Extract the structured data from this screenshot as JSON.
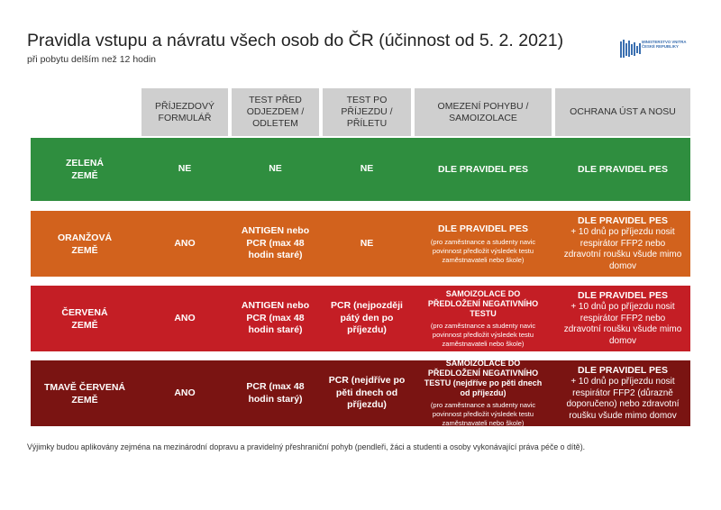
{
  "header": {
    "title": "Pravidla vstupu a návratu všech osob do ČR (účinnost od 5. 2. 2021)",
    "subtitle": "při pobytu delším než 12 hodin",
    "logo_text_line1": "MINISTERSTVO VNITRA",
    "logo_text_line2": "ČESKÉ REPUBLIKY"
  },
  "columns": [
    "PŘÍJEZDOVÝ FORMULÁŘ",
    "TEST PŘED ODJEZDEM / ODLETEM",
    "TEST PO PŘÍJEZDU / PŘÍLETU",
    "OMEZENÍ POHYBU / SAMOIZOLACE",
    "OCHRANA ÚST A NOSU"
  ],
  "rows": [
    {
      "label": "ZELENÁ ZEMĚ",
      "color": "#2f8e3f",
      "formular": "NE",
      "test_pred": "NE",
      "test_po": "NE",
      "omezeni_main": "DLE PRAVIDEL PES",
      "omezeni_note": "",
      "ochrana_main": "DLE PRAVIDEL PES",
      "ochrana_note": ""
    },
    {
      "label": "ORANŽOVÁ ZEMĚ",
      "color": "#d2621d",
      "formular": "ANO",
      "test_pred": "ANTIGEN nebo PCR (max 48 hodin staré)",
      "test_po": "NE",
      "omezeni_main": "DLE PRAVIDEL PES",
      "omezeni_note": "(pro zaměstnance a studenty navic povinnost předložit výsledek testu zaměstnavateli nebo škole)",
      "ochrana_main": "DLE PRAVIDEL PES",
      "ochrana_note": "+ 10 dnů po příjezdu nosit respirátor FFP2 nebo zdravotní roušku všude mimo domov"
    },
    {
      "label": "ČERVENÁ ZEMĚ",
      "color": "#c41e25",
      "formular": "ANO",
      "test_pred": "ANTIGEN nebo PCR (max 48 hodin staré)",
      "test_po": "PCR (nejpozději pátý den po příjezdu)",
      "omezeni_main": "SAMOIZOLACE DO PŘEDLOŽENÍ NEGATIVNÍHO TESTU",
      "omezeni_note": "(pro zaměstnance a studenty navic povinnost předložit výsledek testu zaměstnavateli nebo škole)",
      "ochrana_main": "DLE PRAVIDEL PES",
      "ochrana_note": "+ 10 dnů po příjezdu nosit respirátor FFP2 nebo zdravotní roušku všude mimo domov"
    },
    {
      "label": "TMAVĚ ČERVENÁ ZEMĚ",
      "color": "#7a1412",
      "formular": "ANO",
      "test_pred": "PCR (max 48 hodin starý)",
      "test_po": "PCR (nejdříve po pěti dnech od příjezdu)",
      "omezeni_main": "SAMOIZOLACE DO PŘEDLOŽENÍ NEGATIVNÍHO TESTU (nejdříve po pěti dnech od příjezdu)",
      "omezeni_note": "(pro zaměstnance a studenty navic povinnost předložit výsledek testu zaměstnavateli nebo škole)",
      "ochrana_main": "DLE PRAVIDEL PES",
      "ochrana_note": "+ 10 dnů po příjezdu nosit respirátor FFP2 (důrazně doporučeno) nebo zdravotní roušku všude mimo domov"
    }
  ],
  "footnote": "Výjimky budou aplikovány zejména na mezinárodní dopravu a pravidelný přeshraniční pohyb (pendleři, žáci a studenti a osoby vykonávající práva péče o dítě).",
  "colors": {
    "header_bg": "#cfcfcf",
    "green": "#2f8e3f",
    "orange": "#d2621d",
    "red": "#c41e25",
    "dark_red": "#7a1412",
    "logo_blue": "#3a6fb0"
  }
}
